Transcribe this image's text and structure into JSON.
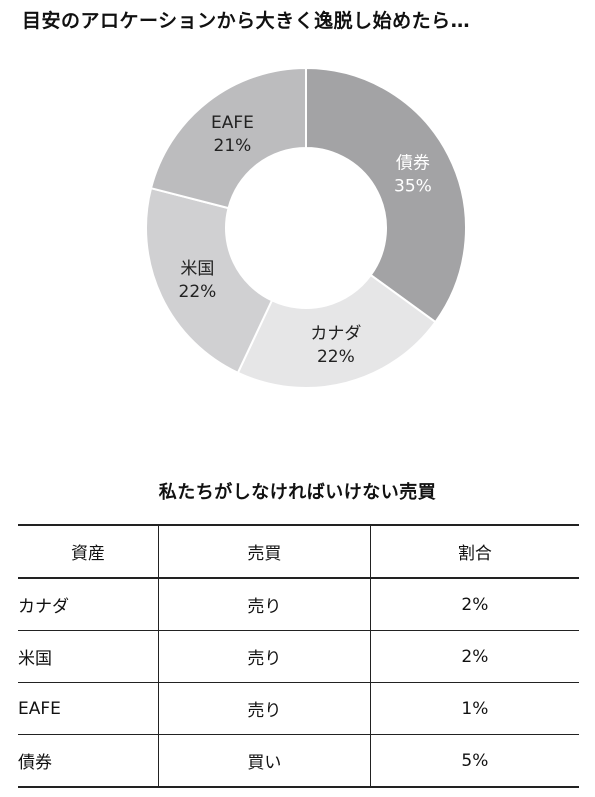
{
  "title": "目安のアロケーションから大きく逸脱し始めたら…",
  "chart_data": {
    "type": "pie",
    "donut": true,
    "slices": [
      {
        "label": "債券",
        "value": 35,
        "pct_label": "35%",
        "color": "#a3a3a5",
        "text_color": "#ffffff"
      },
      {
        "label": "カナダ",
        "value": 22,
        "pct_label": "22%",
        "color": "#e6e6e7",
        "text_color": "#222222"
      },
      {
        "label": "米国",
        "value": 22,
        "pct_label": "22%",
        "color": "#d0d0d2",
        "text_color": "#222222"
      },
      {
        "label": "EAFE",
        "value": 21,
        "pct_label": "21%",
        "color": "#bcbcbe",
        "text_color": "#222222"
      }
    ]
  },
  "table": {
    "title": "私たちがしなければいけない売買",
    "headers": [
      "資産",
      "売買",
      "割合"
    ],
    "rows": [
      {
        "asset": "カナダ",
        "trade": "売り",
        "pct": "2%"
      },
      {
        "asset": "米国",
        "trade": "売り",
        "pct": "2%"
      },
      {
        "asset": "EAFE",
        "trade": "売り",
        "pct": "1%"
      },
      {
        "asset": "債券",
        "trade": "買い",
        "pct": "5%"
      }
    ]
  }
}
